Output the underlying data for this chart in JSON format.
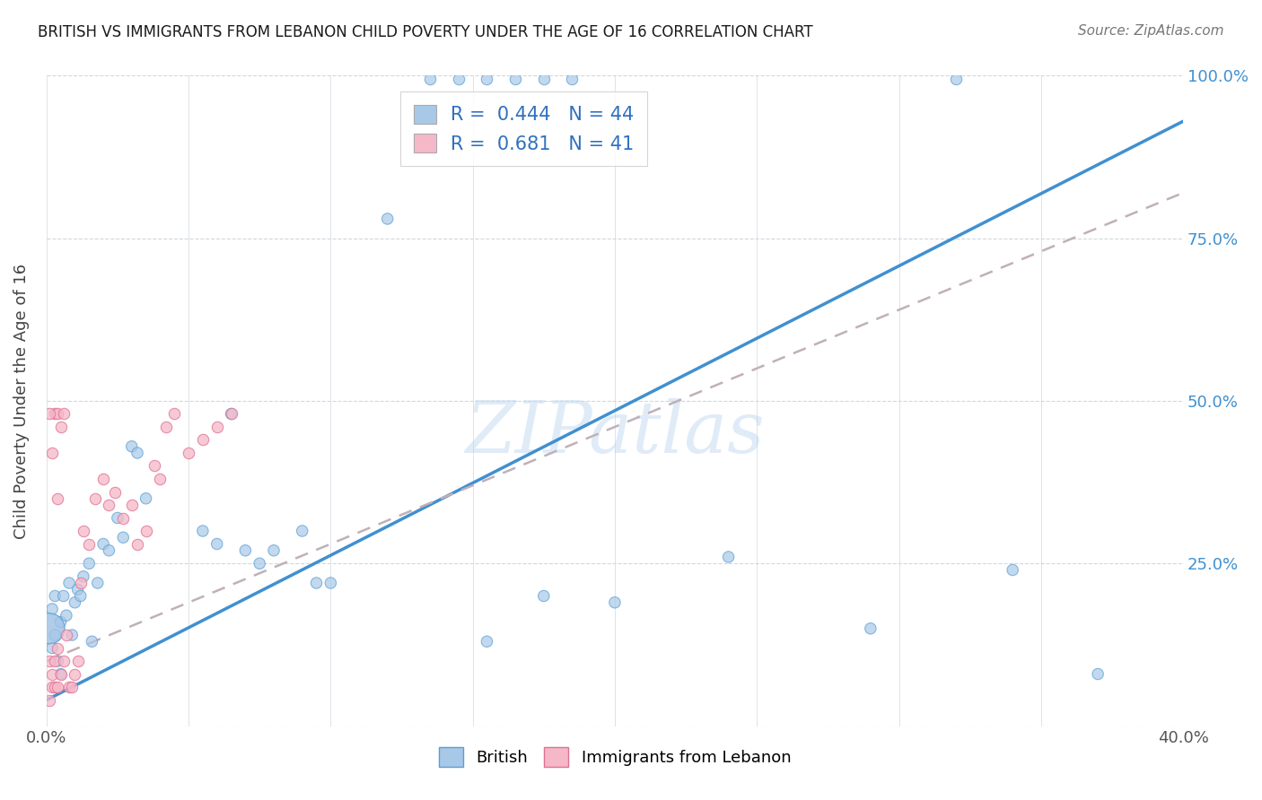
{
  "title": "BRITISH VS IMMIGRANTS FROM LEBANON CHILD POVERTY UNDER THE AGE OF 16 CORRELATION CHART",
  "source": "Source: ZipAtlas.com",
  "ylabel": "Child Poverty Under the Age of 16",
  "x_min": 0.0,
  "x_max": 0.4,
  "y_min": 0.0,
  "y_max": 1.0,
  "x_tick_positions": [
    0.0,
    0.05,
    0.1,
    0.15,
    0.2,
    0.25,
    0.3,
    0.35,
    0.4
  ],
  "x_tick_labels": [
    "0.0%",
    "",
    "",
    "",
    "",
    "",
    "",
    "",
    "40.0%"
  ],
  "y_tick_positions": [
    0.0,
    0.25,
    0.5,
    0.75,
    1.0
  ],
  "y_tick_labels_right": [
    "",
    "25.0%",
    "50.0%",
    "75.0%",
    "100.0%"
  ],
  "watermark": "ZIPatlas",
  "british_color": "#a8c8e8",
  "british_edge_color": "#5a9fd4",
  "lebanon_color": "#f5b8c8",
  "lebanon_edge_color": "#e07090",
  "british_line_color": "#4090d0",
  "lebanon_line_color": "#c0a0b0",
  "british_R": 0.444,
  "british_N": 44,
  "lebanon_R": 0.681,
  "lebanon_N": 41,
  "brit_line_x0": 0.0,
  "brit_line_y0": 0.04,
  "brit_line_x1": 0.4,
  "brit_line_y1": 0.93,
  "leb_line_x0": 0.0,
  "leb_line_y0": 0.1,
  "leb_line_x1": 0.4,
  "leb_line_y1": 0.82,
  "british_x": [
    0.001,
    0.002,
    0.002,
    0.003,
    0.003,
    0.004,
    0.005,
    0.005,
    0.006,
    0.007,
    0.008,
    0.009,
    0.01,
    0.011,
    0.012,
    0.013,
    0.015,
    0.016,
    0.018,
    0.02,
    0.022,
    0.025,
    0.027,
    0.03,
    0.032,
    0.035,
    0.055,
    0.06,
    0.065,
    0.07,
    0.075,
    0.08,
    0.09,
    0.095,
    0.1,
    0.12,
    0.155,
    0.175,
    0.2,
    0.24,
    0.29,
    0.34,
    0.37,
    0.001
  ],
  "british_y": [
    0.15,
    0.18,
    0.12,
    0.14,
    0.2,
    0.1,
    0.16,
    0.08,
    0.2,
    0.17,
    0.22,
    0.14,
    0.19,
    0.21,
    0.2,
    0.23,
    0.25,
    0.13,
    0.22,
    0.28,
    0.27,
    0.32,
    0.29,
    0.43,
    0.42,
    0.35,
    0.3,
    0.28,
    0.48,
    0.27,
    0.25,
    0.27,
    0.3,
    0.22,
    0.22,
    0.78,
    0.13,
    0.2,
    0.19,
    0.26,
    0.15,
    0.24,
    0.08,
    0.15
  ],
  "british_sizes": [
    600,
    80,
    80,
    80,
    80,
    80,
    80,
    80,
    80,
    80,
    80,
    80,
    80,
    80,
    80,
    80,
    80,
    80,
    80,
    80,
    80,
    80,
    80,
    80,
    80,
    80,
    80,
    80,
    80,
    80,
    80,
    80,
    80,
    80,
    80,
    80,
    80,
    80,
    80,
    80,
    80,
    80,
    80,
    600
  ],
  "british_cluster_x": [
    0.135,
    0.145,
    0.155,
    0.165,
    0.175,
    0.185,
    0.32
  ],
  "british_cluster_y": [
    0.995,
    0.995,
    0.995,
    0.995,
    0.995,
    0.995,
    0.995
  ],
  "lebanon_x": [
    0.001,
    0.002,
    0.002,
    0.003,
    0.003,
    0.004,
    0.004,
    0.005,
    0.006,
    0.007,
    0.008,
    0.009,
    0.01,
    0.011,
    0.012,
    0.013,
    0.015,
    0.017,
    0.02,
    0.022,
    0.024,
    0.027,
    0.03,
    0.032,
    0.035,
    0.038,
    0.04,
    0.042,
    0.045,
    0.05,
    0.055,
    0.06,
    0.065,
    0.002,
    0.003,
    0.004,
    0.004,
    0.005,
    0.006,
    0.001,
    0.001
  ],
  "lebanon_y": [
    0.1,
    0.08,
    0.06,
    0.06,
    0.1,
    0.12,
    0.06,
    0.08,
    0.1,
    0.14,
    0.06,
    0.06,
    0.08,
    0.1,
    0.22,
    0.3,
    0.28,
    0.35,
    0.38,
    0.34,
    0.36,
    0.32,
    0.34,
    0.28,
    0.3,
    0.4,
    0.38,
    0.46,
    0.48,
    0.42,
    0.44,
    0.46,
    0.48,
    0.42,
    0.48,
    0.35,
    0.48,
    0.46,
    0.48,
    0.48,
    0.04
  ]
}
